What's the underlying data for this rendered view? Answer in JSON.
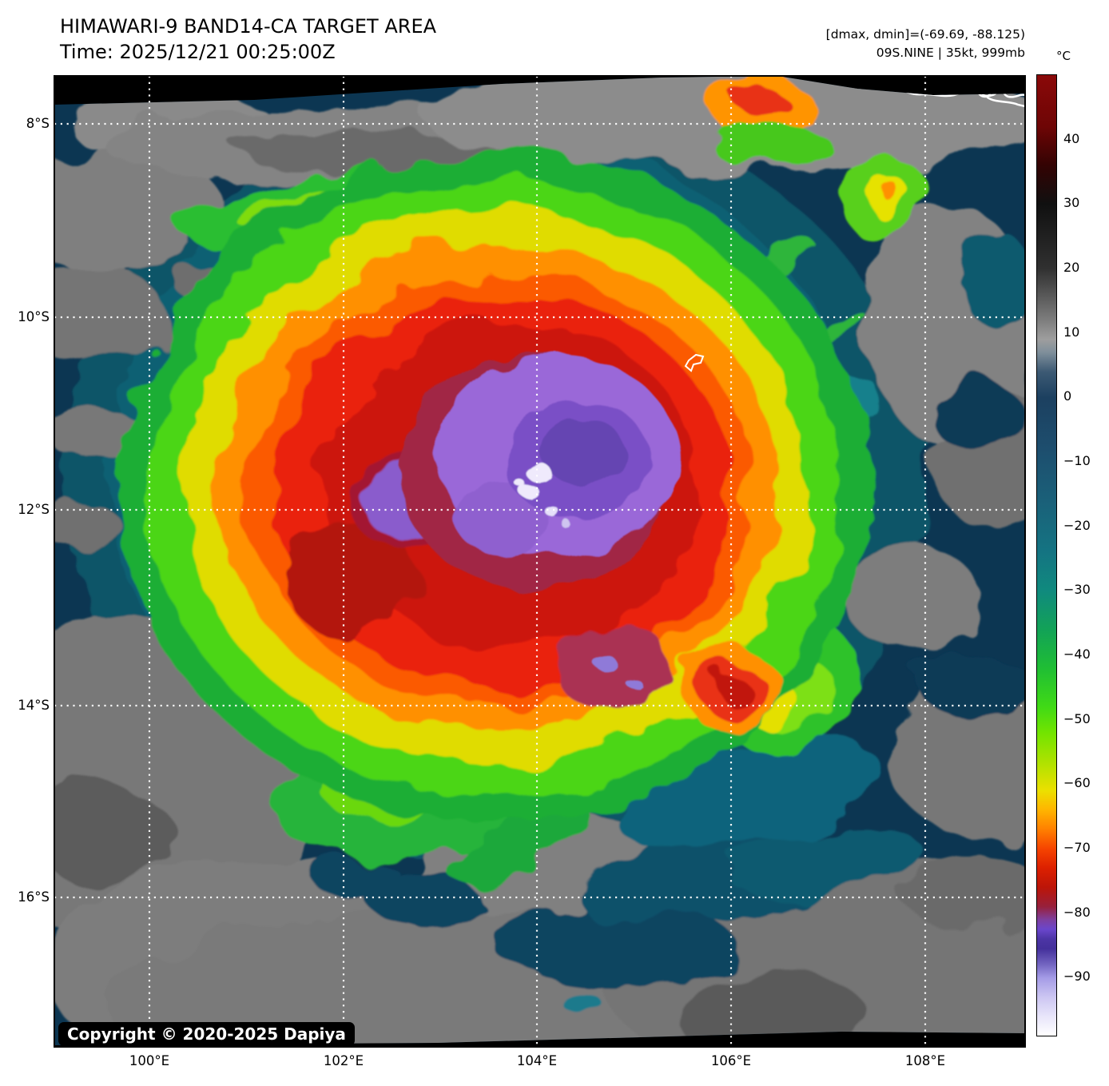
{
  "header": {
    "title": "HIMAWARI-9 BAND14-CA TARGET AREA",
    "time_line": "Time: 2025/12/21 00:25:00Z",
    "annotation_dmax": "[dmax, dmin]=(-69.69, -88.125)",
    "annotation_storm": "09S.NINE | 35kt, 999mb"
  },
  "map": {
    "lat_labels": [
      "8°S",
      "10°S",
      "12°S",
      "14°S",
      "16°S"
    ],
    "lon_labels": [
      "100°E",
      "102°E",
      "104°E",
      "106°E",
      "108°E"
    ],
    "copyright": "Copyright © 2020-2025 Dapiya",
    "gridline_color": "#ffffff",
    "background_color": "#000000",
    "coastline_color": "#ffffff"
  },
  "colorbar": {
    "unit": "°C",
    "tick_labels": [
      "40",
      "30",
      "20",
      "10",
      "0",
      "−10",
      "−20",
      "−30",
      "−40",
      "−50",
      "−60",
      "−70",
      "−80",
      "−90"
    ],
    "tick_values": [
      40,
      30,
      20,
      10,
      0,
      -10,
      -20,
      -30,
      -40,
      -50,
      -60,
      -70,
      -80,
      -90
    ],
    "value_range_estimate": [
      -99,
      50
    ],
    "gradient_stops": [
      {
        "v": 50,
        "c": "#8a0909"
      },
      {
        "v": 42,
        "c": "#6e0505"
      },
      {
        "v": 36,
        "c": "#330303"
      },
      {
        "v": 30,
        "c": "#101010"
      },
      {
        "v": 20,
        "c": "#303030"
      },
      {
        "v": 12,
        "c": "#7d7d7d"
      },
      {
        "v": 9,
        "c": "#9e9e9e"
      },
      {
        "v": 7,
        "c": "#7f8f9b"
      },
      {
        "v": 4,
        "c": "#3d5a74"
      },
      {
        "v": 0,
        "c": "#1c4060"
      },
      {
        "v": -8,
        "c": "#1d4e6e"
      },
      {
        "v": -16,
        "c": "#1a6079"
      },
      {
        "v": -24,
        "c": "#147482"
      },
      {
        "v": -30,
        "c": "#108a7e"
      },
      {
        "v": -36,
        "c": "#12a257"
      },
      {
        "v": -42,
        "c": "#1fbe34"
      },
      {
        "v": -48,
        "c": "#40da16"
      },
      {
        "v": -52,
        "c": "#72e400"
      },
      {
        "v": -57,
        "c": "#b4e200"
      },
      {
        "v": -61,
        "c": "#ece000"
      },
      {
        "v": -64,
        "c": "#ffb400"
      },
      {
        "v": -67,
        "c": "#ff8000"
      },
      {
        "v": -70,
        "c": "#f64400"
      },
      {
        "v": -73,
        "c": "#dc2000"
      },
      {
        "v": -76,
        "c": "#bc1508"
      },
      {
        "v": -79,
        "c": "#97203c"
      },
      {
        "v": -81,
        "c": "#7e3f9e"
      },
      {
        "v": -82.5,
        "c": "#6a46cc"
      },
      {
        "v": -84,
        "c": "#4c35a5"
      },
      {
        "v": -85.5,
        "c": "#44309b"
      },
      {
        "v": -88,
        "c": "#7466c2"
      },
      {
        "v": -90,
        "c": "#a49be6"
      },
      {
        "v": -93,
        "c": "#ccc6f2"
      },
      {
        "v": -96,
        "c": "#e8e5fa"
      },
      {
        "v": -99,
        "c": "#ffffff"
      }
    ]
  }
}
